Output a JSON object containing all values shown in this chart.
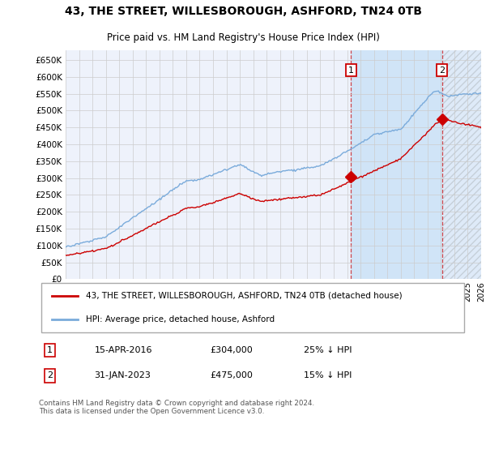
{
  "title_line1": "43, THE STREET, WILLESBOROUGH, ASHFORD, TN24 0TB",
  "title_line2": "Price paid vs. HM Land Registry's House Price Index (HPI)",
  "ylabel_ticks": [
    "£0",
    "£50K",
    "£100K",
    "£150K",
    "£200K",
    "£250K",
    "£300K",
    "£350K",
    "£400K",
    "£450K",
    "£500K",
    "£550K",
    "£600K",
    "£650K"
  ],
  "ytick_vals": [
    0,
    50000,
    100000,
    150000,
    200000,
    250000,
    300000,
    350000,
    400000,
    450000,
    500000,
    550000,
    600000,
    650000
  ],
  "ylim": [
    0,
    680000
  ],
  "hpi_color": "#7aabdb",
  "price_color": "#cc0000",
  "marker1_year": 2016.29,
  "marker1_price": 304000,
  "marker2_year": 2023.08,
  "marker2_price": 475000,
  "vline1_year": 2016.29,
  "vline2_year": 2023.08,
  "legend_label1": "43, THE STREET, WILLESBOROUGH, ASHFORD, TN24 0TB (detached house)",
  "legend_label2": "HPI: Average price, detached house, Ashford",
  "note1_num": "1",
  "note1_date": "15-APR-2016",
  "note1_price": "£304,000",
  "note1_hpi": "25% ↓ HPI",
  "note2_num": "2",
  "note2_date": "31-JAN-2023",
  "note2_price": "£475,000",
  "note2_hpi": "15% ↓ HPI",
  "footer": "Contains HM Land Registry data © Crown copyright and database right 2024.\nThis data is licensed under the Open Government Licence v3.0.",
  "bg_color": "#ffffff",
  "plot_bg_color": "#eef2fb",
  "grid_color": "#cccccc",
  "fill_between_color": "#d0e4f7",
  "hatch_color": "#cccccc"
}
